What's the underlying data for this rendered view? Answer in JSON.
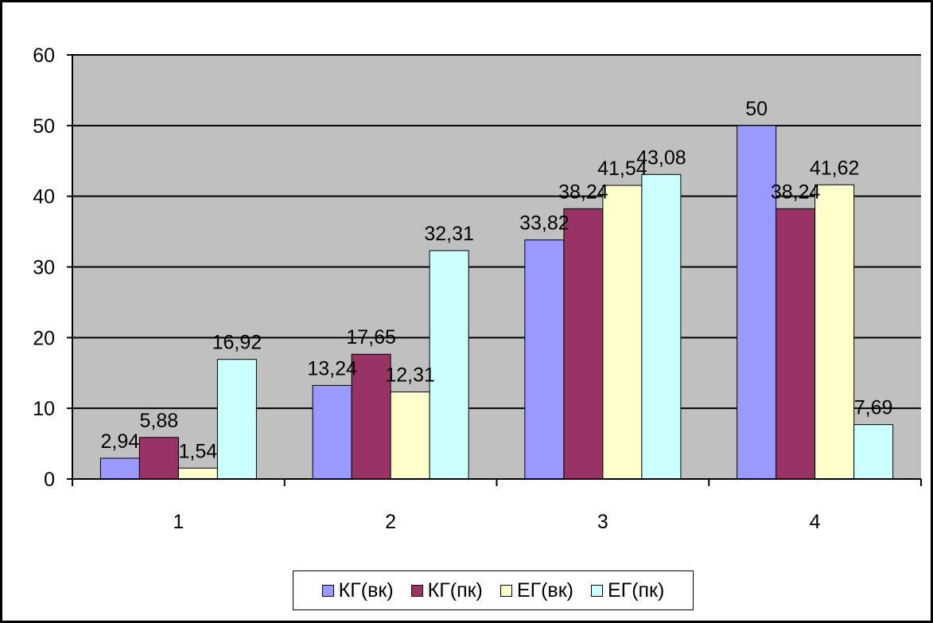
{
  "chart_data": {
    "type": "bar",
    "categories": [
      "1",
      "2",
      "3",
      "4"
    ],
    "series": [
      {
        "name": "КГ(вк)",
        "color": "#9999ff",
        "values": [
          2.94,
          13.24,
          33.82,
          50
        ],
        "labels": [
          "2,94",
          "13,24",
          "33,82",
          "50"
        ]
      },
      {
        "name": "КГ(пк)",
        "color": "#993366",
        "values": [
          5.88,
          17.65,
          38.24,
          38.24
        ],
        "labels": [
          "5,88",
          "17,65",
          "38,24",
          "38,24"
        ]
      },
      {
        "name": "ЕГ(вк)",
        "color": "#ffffcc",
        "values": [
          1.54,
          12.31,
          41.54,
          41.62
        ],
        "labels": [
          "1,54",
          "12,31",
          "41,54",
          "41,62"
        ]
      },
      {
        "name": "ЕГ(пк)",
        "color": "#ccffff",
        "values": [
          16.92,
          32.31,
          43.08,
          7.69
        ],
        "labels": [
          "16,92",
          "32,31",
          "43,08",
          "7,69"
        ]
      }
    ],
    "y_ticks": [
      "0",
      "10",
      "20",
      "30",
      "40",
      "50",
      "60"
    ],
    "ylim": [
      0,
      60
    ],
    "grid": true,
    "plot_background": "#c0c0c0",
    "legend_position": "bottom"
  }
}
